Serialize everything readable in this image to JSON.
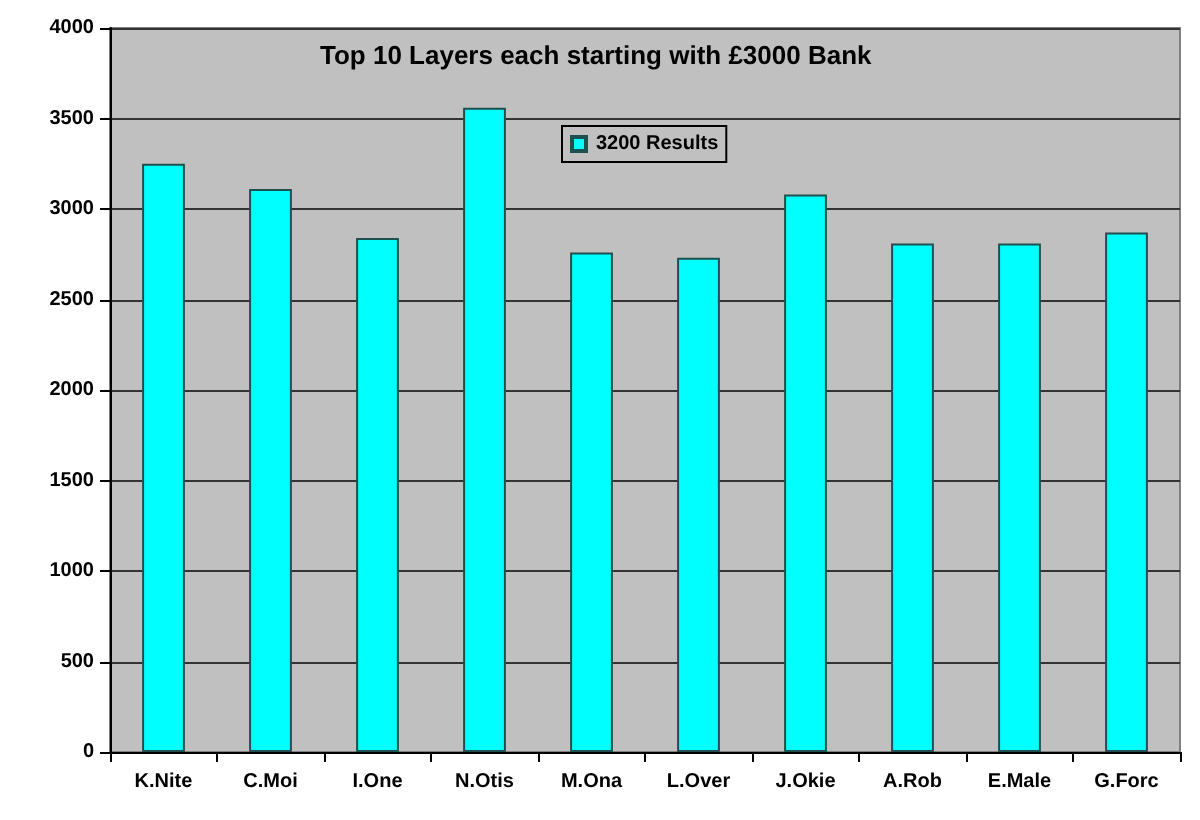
{
  "chart_data": {
    "type": "bar",
    "title": "Top 10 Layers each starting with £3000 Bank",
    "categories": [
      "K.Nite",
      "C.Moi",
      "I.One",
      "N.Otis",
      "M.Ona",
      "L.Over",
      "J.Okie",
      "A.Rob",
      "E.Male",
      "G.Forc"
    ],
    "series": [
      {
        "name": "3200 Results",
        "color": "#00ffff",
        "values": [
          3250,
          3110,
          2840,
          3560,
          2760,
          2730,
          3080,
          2810,
          2810,
          2870
        ]
      }
    ],
    "ylim": [
      0,
      4000
    ],
    "yticks": [
      0,
      500,
      1000,
      1500,
      2000,
      2500,
      3000,
      3500,
      4000
    ],
    "grid": "y",
    "legend": "top"
  }
}
